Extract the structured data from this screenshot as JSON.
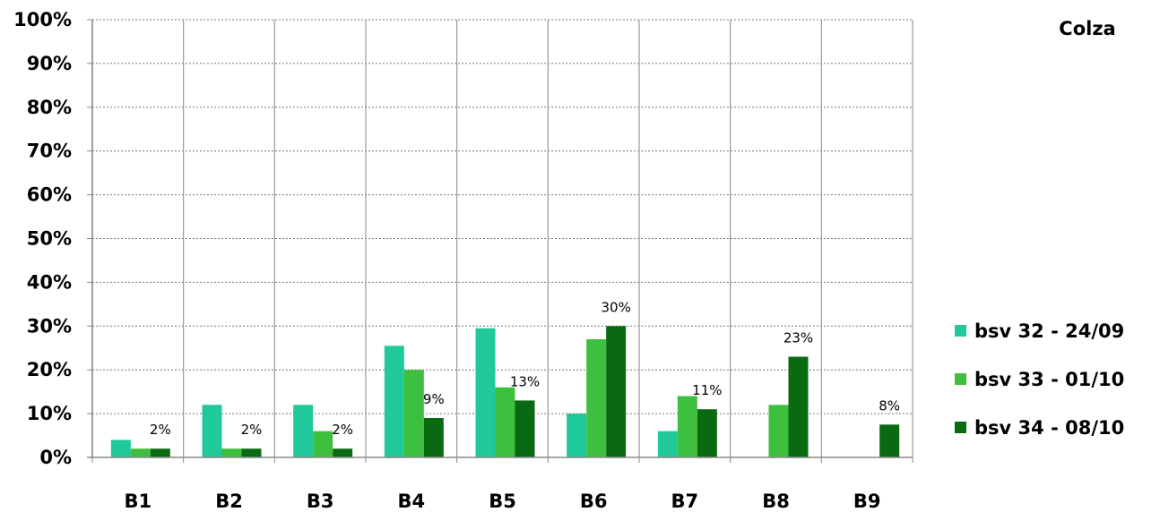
{
  "chart_data": {
    "type": "bar",
    "title": "Colza",
    "xlabel": "",
    "ylabel": "",
    "ylim": [
      0,
      100
    ],
    "yticks": [
      "0%",
      "10%",
      "20%",
      "30%",
      "40%",
      "50%",
      "60%",
      "70%",
      "80%",
      "90%",
      "100%"
    ],
    "grid": true,
    "legend_position": "right",
    "categories": [
      "B1",
      "B2",
      "B3",
      "B4",
      "B5",
      "B6",
      "B7",
      "B8",
      "B9"
    ],
    "series": [
      {
        "name": "bsv 32 - 24/09",
        "color": "#1fc99a",
        "values": [
          4,
          12,
          12,
          25.5,
          29.5,
          10,
          6,
          0,
          0
        ],
        "data_labels": [
          null,
          null,
          null,
          null,
          null,
          null,
          null,
          null,
          null
        ]
      },
      {
        "name": "bsv 33 - 01/10",
        "color": "#3fbf3f",
        "values": [
          2,
          2,
          6,
          20,
          16,
          27,
          14,
          12,
          0
        ],
        "data_labels": [
          null,
          null,
          null,
          null,
          null,
          null,
          null,
          null,
          null
        ]
      },
      {
        "name": "bsv 34 - 08/10",
        "color": "#0a6a12",
        "values": [
          2,
          2,
          2,
          9,
          13,
          30,
          11,
          23,
          7.5
        ],
        "data_labels": [
          "2%",
          "2%",
          "2%",
          "9%",
          "13%",
          "30%",
          "11%",
          "23%",
          "8%"
        ]
      }
    ]
  }
}
